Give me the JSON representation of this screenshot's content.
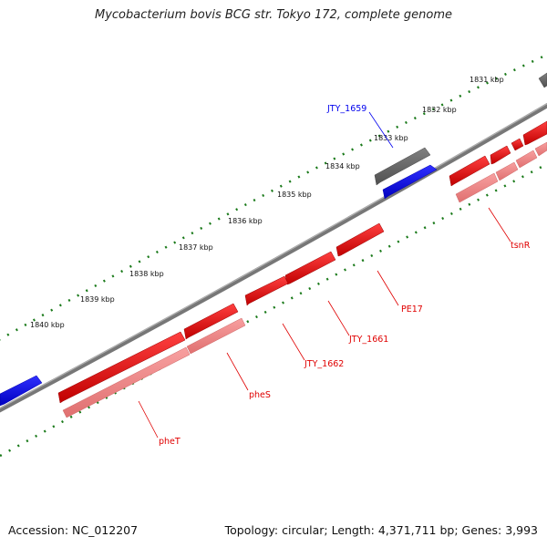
{
  "title": "Mycobacterium bovis BCG str. Tokyo 172, complete genome",
  "footer": {
    "accession": "Accession: NC_012207",
    "summary": "Topology: circular; Length: 4,371,711 bp; Genes: 3,993"
  },
  "kbp_ticks": [
    "1831 kbp",
    "1832 kbp",
    "1833 kbp",
    "1834 kbp",
    "1835 kbp",
    "1836 kbp",
    "1837 kbp",
    "1838 kbp",
    "1839 kbp",
    "1840 kbp"
  ],
  "gene_labels": {
    "jty1659": "JTY_1659",
    "tsnR": "tsnR",
    "pe17": "PE17",
    "jty1661": "JTY_1661",
    "jty1662": "JTY_1662",
    "pheS": "pheS",
    "pheT": "pheT"
  },
  "colors": {
    "cds": "#e00000",
    "cds_light": "#f08080",
    "other": "#0000ee",
    "rna": "#666666",
    "backbone": "#808080",
    "scale": "#1a7a1a"
  }
}
